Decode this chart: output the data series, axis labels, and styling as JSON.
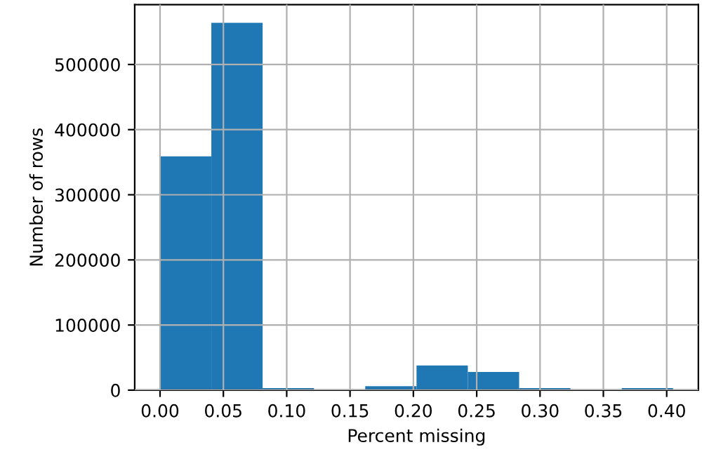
{
  "chart_data": {
    "type": "histogram",
    "xlabel": "Percent missing",
    "ylabel": "Number of rows",
    "bins": [
      0.0,
      0.0405,
      0.081,
      0.1215,
      0.162,
      0.2025,
      0.243,
      0.2835,
      0.324,
      0.3645,
      0.405
    ],
    "values": [
      359000,
      564000,
      3000,
      0,
      6000,
      38000,
      28000,
      3000,
      0,
      3000
    ],
    "color": "#1f77b4",
    "xlim": [
      -0.02,
      0.425
    ],
    "ylim": [
      0,
      592000
    ],
    "xticks": [
      {
        "value": 0,
        "label": "0.00"
      },
      0.05,
      {
        "value": 0.1,
        "label": "0.10"
      },
      0.15,
      {
        "value": 0.2,
        "label": "0.20"
      },
      0.25,
      {
        "value": 0.3,
        "label": "0.30"
      },
      0.35,
      {
        "value": 0.4,
        "label": "0.40"
      }
    ],
    "yticks": [
      0,
      100000,
      200000,
      300000,
      400000,
      500000
    ],
    "grid": true
  }
}
